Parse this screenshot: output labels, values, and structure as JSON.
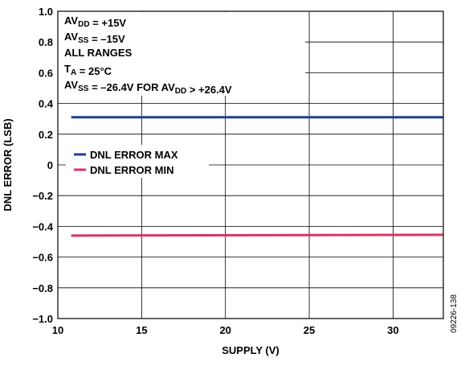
{
  "chart_data": {
    "type": "line",
    "xlabel": "SUPPLY (V)",
    "ylabel": "DNL ERROR (LSB)",
    "xlim": [
      10,
      33
    ],
    "ylim": [
      -1.0,
      1.0
    ],
    "x_ticks": [
      10,
      15,
      20,
      25,
      30
    ],
    "x_tick_labels": [
      "10",
      "15",
      "20",
      "25",
      "30"
    ],
    "y_ticks": [
      1.0,
      0.8,
      0.6,
      0.4,
      0.2,
      0,
      -0.2,
      -0.4,
      -0.6,
      -0.8,
      -1.0
    ],
    "y_tick_labels": [
      "1.0",
      "0.8",
      "0.6",
      "0.4",
      "0.2",
      "0",
      "−0.2",
      "−0.4",
      "−0.6",
      "−0.8",
      "−1.0"
    ],
    "grid": true,
    "legend_position": "center-left",
    "series": [
      {
        "name": "DNL ERROR MAX",
        "color": "#1f3f8f",
        "x": [
          10.8,
          33
        ],
        "y": [
          0.31,
          0.31
        ]
      },
      {
        "name": "DNL ERROR MIN",
        "color": "#d9365f",
        "x": [
          10.8,
          33
        ],
        "y": [
          -0.46,
          -0.455
        ]
      }
    ],
    "annotations": [
      {
        "parts": [
          {
            "t": "AV"
          },
          {
            "t": "DD",
            "sub": true
          },
          {
            "t": " = +15V"
          }
        ]
      },
      {
        "parts": [
          {
            "t": "AV"
          },
          {
            "t": "SS",
            "sub": true
          },
          {
            "t": " = –15V"
          }
        ]
      },
      {
        "parts": [
          {
            "t": "ALL RANGES"
          }
        ]
      },
      {
        "parts": [
          {
            "t": "T"
          },
          {
            "t": "A",
            "sub": true
          },
          {
            "t": " = 25°C"
          }
        ]
      },
      {
        "parts": [
          {
            "t": "AV"
          },
          {
            "t": "SS",
            "sub": true
          },
          {
            "t": " = –26.4V FOR AV"
          },
          {
            "t": "DD",
            "sub": true
          },
          {
            "t": " > +26.4V"
          }
        ]
      }
    ],
    "figure_id": "09226-138"
  }
}
